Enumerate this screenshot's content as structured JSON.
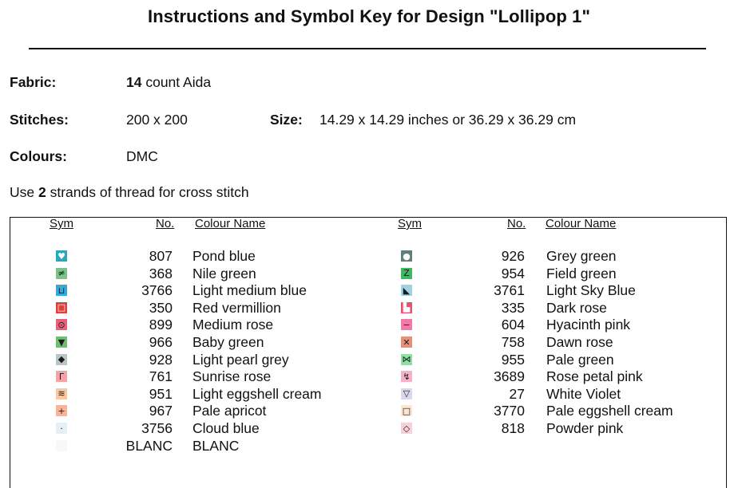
{
  "title": "Instructions and Symbol Key for Design \"Lollipop 1\"",
  "fabric": {
    "label": "Fabric:",
    "count": "14",
    "rest": "count Aida"
  },
  "stitches": {
    "label": "Stitches:",
    "value": "200 x 200"
  },
  "size": {
    "label": "Size:",
    "value": "14.29 x 14.29 inches or 36.29 x 36.29 cm"
  },
  "colours": {
    "label": "Colours:",
    "value": "DMC"
  },
  "strands": {
    "pre": "Use ",
    "count": "2",
    "post": " strands of thread for cross stitch"
  },
  "headers": {
    "sym": "Sym",
    "no": "No.",
    "name": "Colour Name"
  },
  "left_key": [
    {
      "no": "807",
      "name": "Pond blue",
      "bg": "#2aa7b8",
      "fg": "#ffffff",
      "glyph": "♥",
      "icon": "heart-symbol-icon"
    },
    {
      "no": "368",
      "name": "Nile green",
      "bg": "#7cc28a",
      "fg": "#1a1a1a",
      "glyph": "≠",
      "icon": "not-equal-symbol-icon"
    },
    {
      "no": "3766",
      "name": "Light medium blue",
      "bg": "#36a9d6",
      "fg": "#1a1a1a",
      "glyph": "⊔",
      "icon": "cup-symbol-icon"
    },
    {
      "no": "350",
      "name": "Red vermillion",
      "bg": "#e0403a",
      "fg": "#ffffff",
      "glyph": "□",
      "icon": "square-symbol-icon"
    },
    {
      "no": "899",
      "name": "Medium rose",
      "bg": "#e8607a",
      "fg": "#1a1a1a",
      "glyph": "⊙",
      "icon": "circle-dot-symbol-icon"
    },
    {
      "no": "966",
      "name": "Baby green",
      "bg": "#6cc070",
      "fg": "#1a1a1a",
      "glyph": "▼",
      "icon": "triangle-down-symbol-icon"
    },
    {
      "no": "928",
      "name": "Light pearl grey",
      "bg": "#b8c6c8",
      "fg": "#1a1a1a",
      "glyph": "◆",
      "icon": "diamond-symbol-icon"
    },
    {
      "no": "761",
      "name": "Sunrise rose",
      "bg": "#f2a4a8",
      "fg": "#1a1a1a",
      "glyph": "Γ",
      "icon": "corner-symbol-icon"
    },
    {
      "no": "951",
      "name": "Light eggshell cream",
      "bg": "#f8c9a0",
      "fg": "#1a1a1a",
      "glyph": "≋",
      "icon": "waves-symbol-icon"
    },
    {
      "no": "967",
      "name": "Pale apricot",
      "bg": "#f8b49a",
      "fg": "#1a1a1a",
      "glyph": "+",
      "icon": "plus-symbol-icon"
    },
    {
      "no": "3756",
      "name": "Cloud blue",
      "bg": "#e4f0f6",
      "fg": "#1a1a1a",
      "glyph": "·",
      "icon": "dot-symbol-icon"
    },
    {
      "no": "BLANC",
      "name": "BLANC",
      "bg": "#f8f8f8",
      "fg": "#cccccc",
      "glyph": "",
      "icon": "blank-symbol-icon"
    }
  ],
  "right_key": [
    {
      "no": "926",
      "name": "Grey green",
      "bg": "#5f7f7c",
      "fg": "#ffffff",
      "glyph": "●",
      "icon": "filled-circle-symbol-icon"
    },
    {
      "no": "954",
      "name": "Field green",
      "bg": "#3fb866",
      "fg": "#1a1a1a",
      "glyph": "Z",
      "icon": "z-symbol-icon"
    },
    {
      "no": "3761",
      "name": "Light Sky Blue",
      "bg": "#9fd2e4",
      "fg": "#1a1a1a",
      "glyph": "◣",
      "icon": "triangle-corner-symbol-icon"
    },
    {
      "no": "335",
      "name": "Dark rose",
      "bg": "#e85070",
      "fg": "#ffffff",
      "glyph": "▙",
      "icon": "l-block-symbol-icon"
    },
    {
      "no": "604",
      "name": "Hyacinth pink",
      "bg": "#f27aa8",
      "fg": "#1a1a1a",
      "glyph": "−",
      "icon": "minus-symbol-icon"
    },
    {
      "no": "758",
      "name": "Dawn rose",
      "bg": "#e6907c",
      "fg": "#1a1a1a",
      "glyph": "✕",
      "icon": "cross-symbol-icon"
    },
    {
      "no": "955",
      "name": "Pale green",
      "bg": "#8fe0a4",
      "fg": "#1a1a1a",
      "glyph": "⋈",
      "icon": "bowtie-symbol-icon"
    },
    {
      "no": "3689",
      "name": "Rose petal pink",
      "bg": "#f6b0c8",
      "fg": "#1a1a1a",
      "glyph": "↯",
      "icon": "hook-symbol-icon"
    },
    {
      "no": "27",
      "name": "White Violet",
      "bg": "#dcd8ec",
      "fg": "#1a1a1a",
      "glyph": "▽",
      "icon": "triangle-outline-symbol-icon"
    },
    {
      "no": "3770",
      "name": "Pale eggshell cream",
      "bg": "#fbe6d2",
      "fg": "#1a1a1a",
      "glyph": "□",
      "icon": "outline-square-symbol-icon"
    },
    {
      "no": "818",
      "name": "Powder pink",
      "bg": "#f8d0d8",
      "fg": "#1a1a1a",
      "glyph": "◇",
      "icon": "diamond-outline-symbol-icon"
    }
  ]
}
